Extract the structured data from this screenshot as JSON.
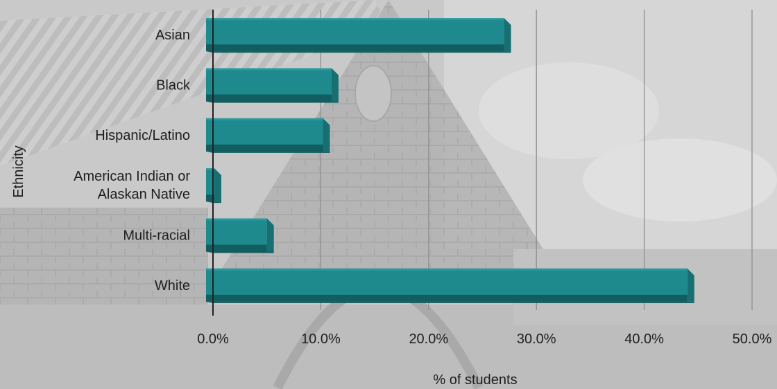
{
  "chart_data": {
    "type": "bar",
    "orientation": "horizontal",
    "title": "",
    "xlabel": "% of students",
    "ylabel": "Ethnicity",
    "xlim": [
      0,
      50
    ],
    "x_ticks": [
      "0.0%",
      "10.0%",
      "20.0%",
      "30.0%",
      "40.0%",
      "50.0%"
    ],
    "x_tick_values": [
      0,
      10,
      20,
      30,
      40,
      50
    ],
    "categories": [
      [
        "Asian"
      ],
      [
        "Black"
      ],
      [
        "Hispanic/Latino"
      ],
      [
        "American Indian or",
        "Alaskan Native"
      ],
      [
        "Multi-racial"
      ],
      [
        "White"
      ]
    ],
    "values": [
      27.0,
      11.0,
      10.2,
      0.1,
      5.0,
      44.0
    ],
    "grid": "vertical",
    "legend": "none",
    "colors": {
      "bar": "#1e8a8e",
      "bar_bottom": "#125d60",
      "bar_side": "#176f72",
      "bar_top": "#2fa3a6",
      "grid": "#8e8e8e",
      "axis": "#222222",
      "background_tint": "#c4c4c4"
    }
  }
}
